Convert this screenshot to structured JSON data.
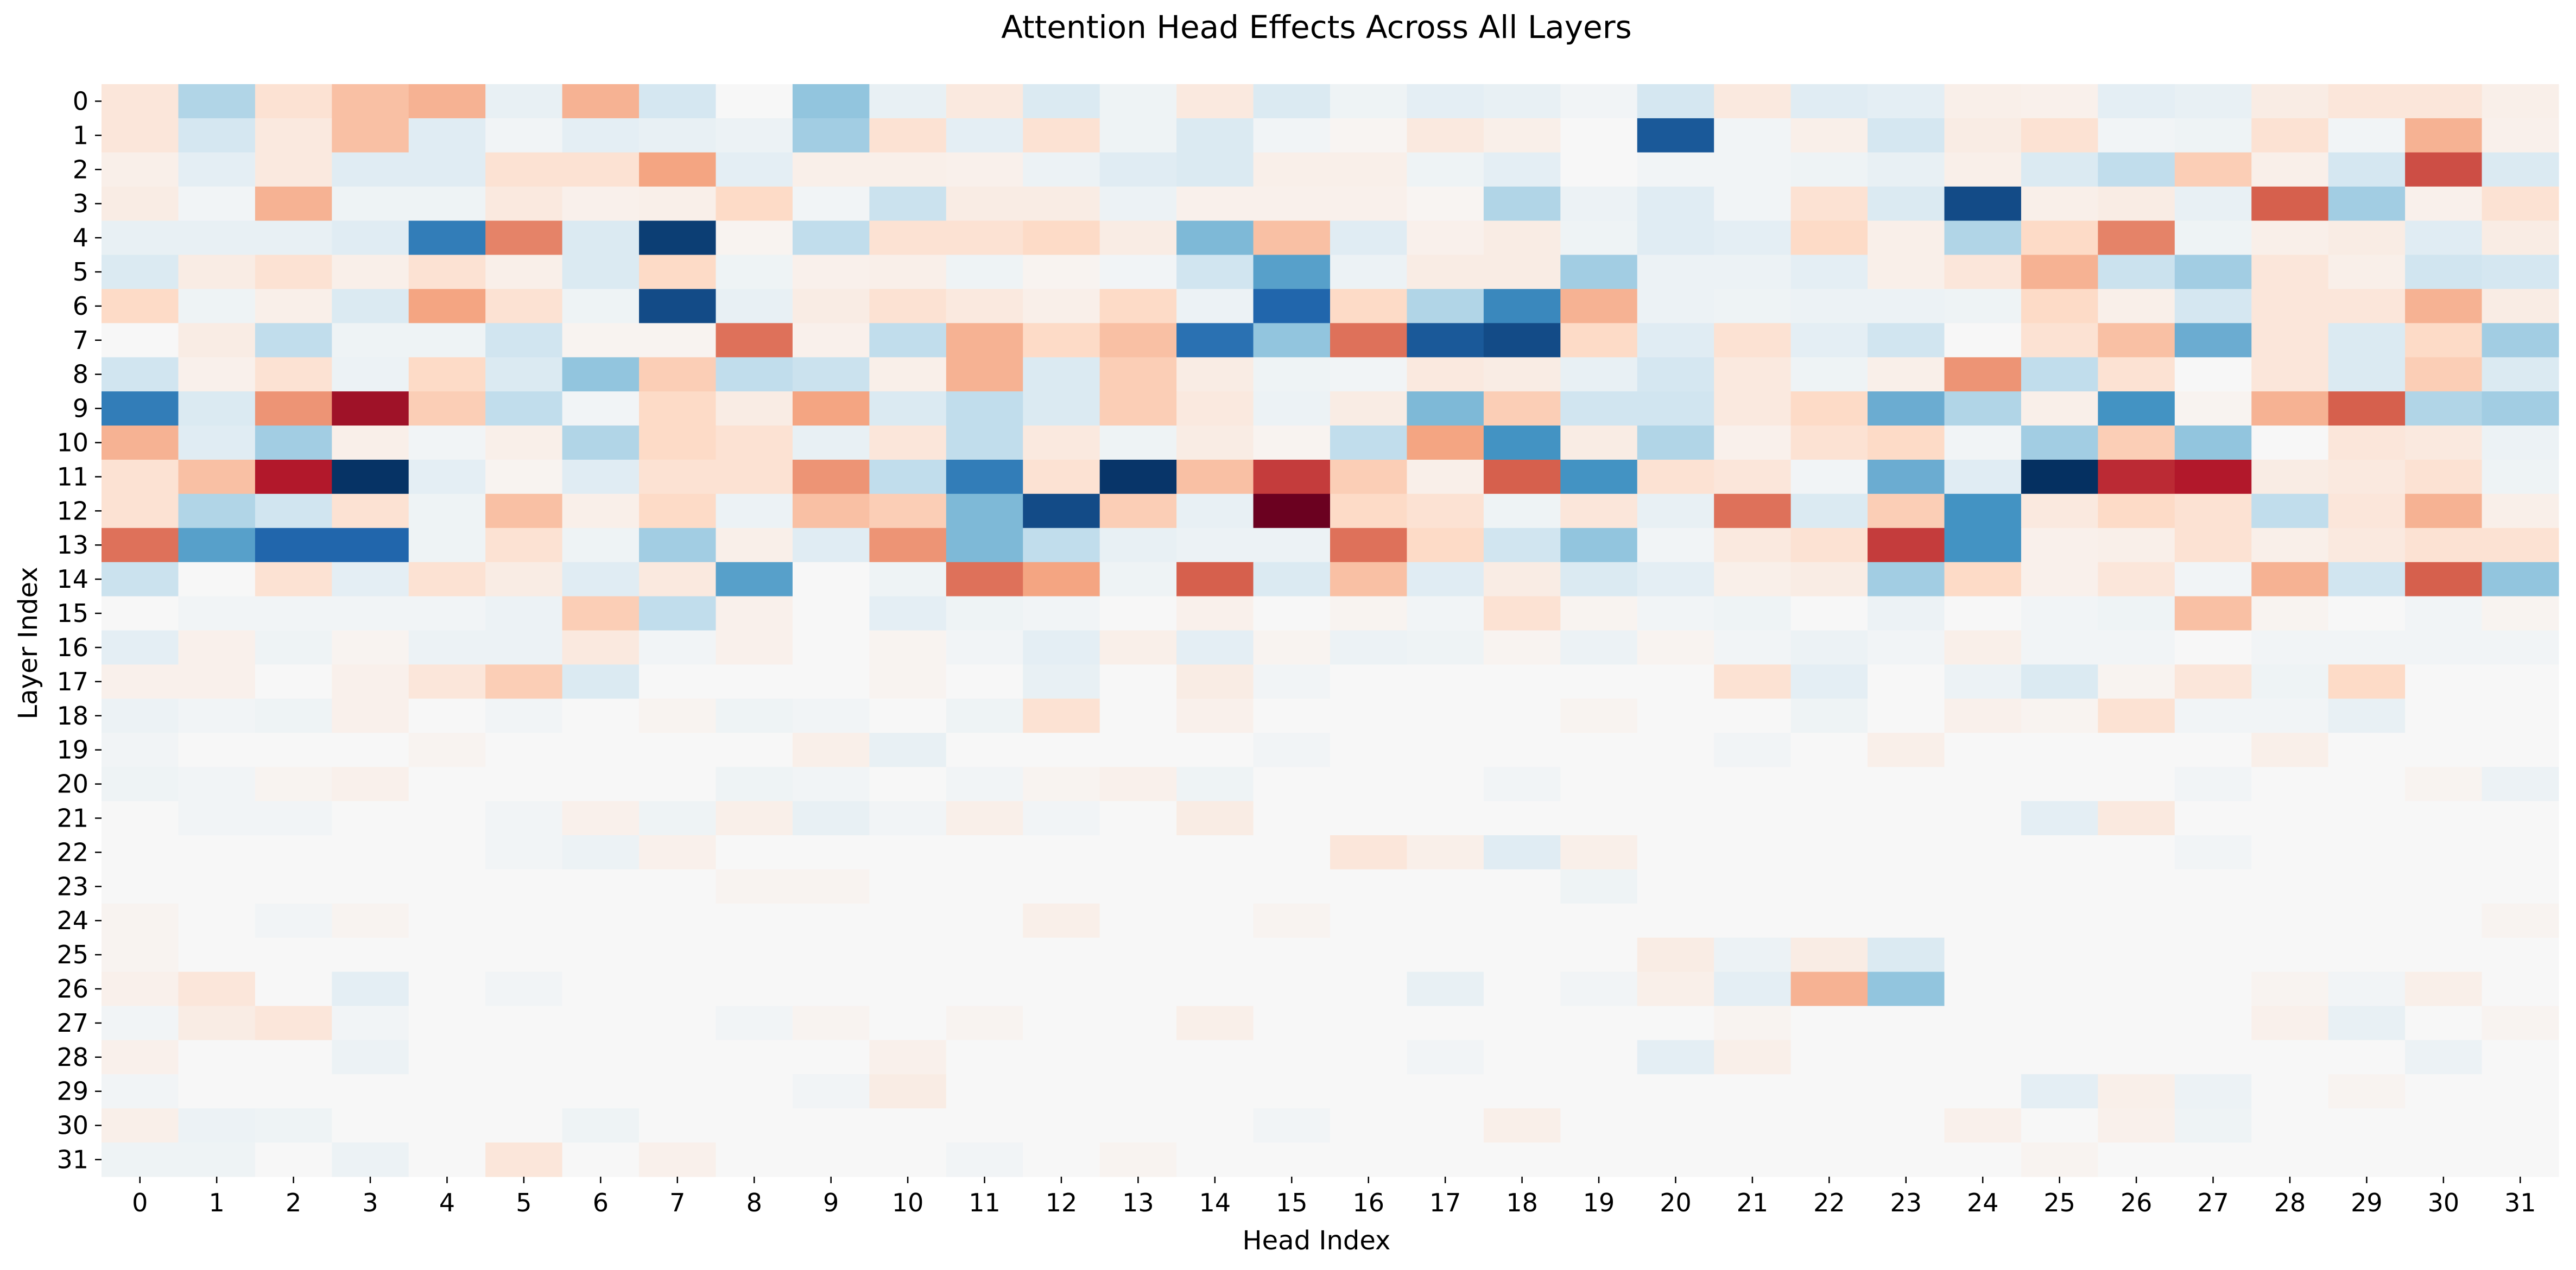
{
  "chart_data": {
    "type": "heatmap",
    "title": "Attention Head Effects Across All Layers",
    "xlabel": "Head Index",
    "ylabel": "Layer Index",
    "x_categories": [
      "0",
      "1",
      "2",
      "3",
      "4",
      "5",
      "6",
      "7",
      "8",
      "9",
      "10",
      "11",
      "12",
      "13",
      "14",
      "15",
      "16",
      "17",
      "18",
      "19",
      "20",
      "21",
      "22",
      "23",
      "24",
      "25",
      "26",
      "27",
      "28",
      "29",
      "30",
      "31"
    ],
    "y_categories": [
      "0",
      "1",
      "2",
      "3",
      "4",
      "5",
      "6",
      "7",
      "8",
      "9",
      "10",
      "11",
      "12",
      "13",
      "14",
      "15",
      "16",
      "17",
      "18",
      "19",
      "20",
      "21",
      "22",
      "23",
      "24",
      "25",
      "26",
      "27",
      "28",
      "29",
      "30",
      "31"
    ],
    "colormap": "RdBu_r",
    "vmin": -1,
    "vmax": 1,
    "colorbar": false,
    "grid": false,
    "values": [
      [
        0.12,
        -0.3,
        0.15,
        0.3,
        0.35,
        -0.08,
        0.35,
        -0.18,
        0.0,
        -0.4,
        -0.08,
        0.1,
        -0.15,
        -0.05,
        0.1,
        -0.15,
        -0.05,
        -0.1,
        -0.08,
        -0.03,
        -0.18,
        0.1,
        -0.12,
        -0.1,
        0.06,
        0.05,
        -0.1,
        -0.08,
        0.08,
        0.12,
        0.12,
        0.06
      ],
      [
        0.12,
        -0.18,
        0.1,
        0.3,
        -0.12,
        -0.03,
        -0.1,
        -0.08,
        -0.06,
        -0.35,
        0.15,
        -0.1,
        0.15,
        -0.05,
        -0.15,
        -0.03,
        0.02,
        0.1,
        0.06,
        0.0,
        -0.85,
        -0.03,
        0.06,
        -0.18,
        0.08,
        0.15,
        -0.03,
        -0.05,
        0.15,
        -0.03,
        0.35,
        0.05
      ],
      [
        0.06,
        -0.1,
        0.1,
        -0.12,
        -0.12,
        0.15,
        0.15,
        0.4,
        -0.1,
        0.06,
        0.06,
        0.05,
        -0.06,
        -0.12,
        -0.15,
        0.06,
        0.06,
        -0.05,
        -0.1,
        0.0,
        -0.03,
        -0.03,
        -0.05,
        -0.08,
        0.06,
        -0.15,
        -0.25,
        0.25,
        0.06,
        -0.18,
        0.65,
        -0.15
      ],
      [
        0.08,
        -0.03,
        0.35,
        -0.05,
        -0.05,
        0.1,
        0.05,
        0.06,
        0.2,
        -0.03,
        -0.22,
        0.08,
        0.08,
        -0.06,
        0.05,
        0.05,
        0.05,
        0.02,
        -0.3,
        -0.06,
        -0.12,
        -0.03,
        0.15,
        -0.15,
        -0.9,
        0.06,
        0.08,
        -0.08,
        0.6,
        -0.35,
        0.05,
        0.15
      ],
      [
        -0.08,
        -0.08,
        -0.08,
        -0.12,
        -0.7,
        0.5,
        -0.15,
        -0.95,
        0.03,
        -0.25,
        0.15,
        0.15,
        0.2,
        0.08,
        -0.45,
        0.3,
        -0.12,
        0.05,
        0.08,
        -0.05,
        -0.12,
        -0.1,
        0.2,
        0.06,
        -0.3,
        0.2,
        0.5,
        -0.05,
        0.06,
        0.08,
        -0.12,
        0.08
      ],
      [
        -0.15,
        0.08,
        0.15,
        0.06,
        0.15,
        0.06,
        -0.15,
        0.2,
        -0.05,
        0.05,
        0.06,
        -0.05,
        0.03,
        -0.03,
        -0.2,
        -0.55,
        -0.06,
        0.08,
        0.08,
        -0.35,
        -0.06,
        -0.06,
        -0.1,
        0.06,
        0.12,
        0.35,
        -0.22,
        -0.35,
        0.12,
        0.06,
        -0.2,
        -0.18
      ],
      [
        0.2,
        -0.05,
        0.06,
        -0.15,
        0.4,
        0.15,
        -0.05,
        -0.9,
        -0.08,
        0.08,
        0.15,
        0.1,
        0.06,
        0.2,
        -0.06,
        -0.8,
        0.2,
        -0.3,
        -0.65,
        0.35,
        -0.06,
        -0.05,
        -0.06,
        -0.06,
        -0.05,
        0.2,
        0.06,
        -0.18,
        0.12,
        0.12,
        0.35,
        0.08
      ],
      [
        0.0,
        0.08,
        -0.25,
        -0.05,
        -0.05,
        -0.2,
        0.03,
        0.03,
        0.55,
        0.05,
        -0.25,
        0.35,
        0.2,
        0.3,
        -0.75,
        -0.4,
        0.55,
        -0.85,
        -0.9,
        0.2,
        -0.12,
        0.15,
        -0.1,
        -0.2,
        0.0,
        0.15,
        0.3,
        -0.5,
        0.12,
        -0.15,
        0.2,
        -0.35
      ],
      [
        -0.2,
        0.05,
        0.15,
        -0.06,
        0.2,
        -0.15,
        -0.4,
        0.25,
        -0.25,
        -0.22,
        0.06,
        0.35,
        -0.15,
        0.25,
        0.08,
        -0.05,
        -0.03,
        0.1,
        0.08,
        -0.08,
        -0.18,
        0.1,
        -0.05,
        0.06,
        0.45,
        -0.25,
        0.15,
        0.0,
        0.12,
        -0.15,
        0.25,
        -0.15
      ],
      [
        -0.7,
        -0.15,
        0.45,
        0.85,
        0.25,
        -0.25,
        -0.03,
        0.2,
        0.08,
        0.4,
        -0.15,
        -0.25,
        -0.15,
        0.25,
        0.1,
        -0.06,
        0.08,
        -0.45,
        0.25,
        -0.2,
        -0.2,
        0.1,
        0.2,
        -0.5,
        -0.3,
        0.06,
        -0.6,
        0.03,
        0.35,
        0.6,
        -0.3,
        -0.35
      ],
      [
        0.35,
        -0.12,
        -0.35,
        0.06,
        -0.03,
        0.06,
        -0.3,
        0.2,
        0.15,
        -0.08,
        0.12,
        -0.25,
        0.1,
        -0.05,
        0.08,
        0.03,
        -0.25,
        0.4,
        -0.6,
        0.08,
        -0.3,
        0.05,
        0.15,
        0.2,
        -0.03,
        -0.35,
        0.25,
        -0.4,
        0.0,
        0.12,
        0.1,
        -0.06
      ],
      [
        0.15,
        0.3,
        0.8,
        -0.99,
        -0.1,
        0.03,
        -0.12,
        0.15,
        0.15,
        0.45,
        -0.25,
        -0.7,
        0.15,
        -0.98,
        0.3,
        0.7,
        0.25,
        0.06,
        0.6,
        -0.6,
        0.15,
        0.12,
        -0.03,
        -0.5,
        -0.12,
        -1.0,
        0.75,
        0.8,
        0.08,
        0.1,
        0.15,
        -0.05
      ],
      [
        0.15,
        -0.3,
        -0.2,
        0.15,
        -0.05,
        0.3,
        0.06,
        0.2,
        -0.06,
        0.3,
        0.25,
        -0.45,
        -0.9,
        0.25,
        -0.08,
        0.99,
        0.2,
        0.15,
        -0.05,
        0.12,
        -0.08,
        0.55,
        -0.15,
        0.25,
        -0.6,
        0.1,
        0.2,
        0.15,
        -0.25,
        0.12,
        0.35,
        0.06
      ],
      [
        0.55,
        -0.55,
        -0.8,
        -0.8,
        -0.05,
        0.15,
        -0.05,
        -0.35,
        0.06,
        -0.12,
        0.45,
        -0.45,
        -0.25,
        -0.08,
        -0.06,
        -0.06,
        0.55,
        0.2,
        -0.2,
        -0.4,
        -0.03,
        0.1,
        0.15,
        0.7,
        -0.6,
        0.05,
        0.06,
        0.15,
        0.06,
        0.1,
        0.15,
        0.15
      ],
      [
        -0.22,
        0.0,
        0.15,
        -0.1,
        0.15,
        0.08,
        -0.12,
        0.1,
        -0.55,
        0.0,
        -0.05,
        0.55,
        0.4,
        -0.05,
        0.6,
        -0.15,
        0.3,
        -0.12,
        0.08,
        -0.15,
        -0.1,
        0.06,
        0.08,
        -0.35,
        0.2,
        0.05,
        0.12,
        -0.03,
        0.35,
        -0.2,
        0.6,
        -0.4
      ],
      [
        0.0,
        -0.03,
        -0.03,
        -0.03,
        -0.03,
        -0.06,
        0.25,
        -0.25,
        0.05,
        0.0,
        -0.1,
        -0.05,
        -0.03,
        0.0,
        0.05,
        0.0,
        0.03,
        -0.03,
        0.15,
        0.03,
        -0.03,
        -0.05,
        0.0,
        -0.06,
        0.0,
        -0.03,
        -0.05,
        0.3,
        0.03,
        0.0,
        -0.03,
        0.03
      ],
      [
        -0.1,
        0.05,
        -0.05,
        0.03,
        -0.06,
        -0.06,
        0.1,
        -0.03,
        0.05,
        0.0,
        0.03,
        -0.03,
        -0.1,
        0.06,
        -0.1,
        0.03,
        -0.06,
        -0.05,
        0.03,
        -0.06,
        0.03,
        -0.03,
        -0.06,
        -0.03,
        0.06,
        -0.03,
        -0.03,
        0.0,
        -0.03,
        -0.03,
        -0.03,
        -0.03
      ],
      [
        0.05,
        0.05,
        0.0,
        0.05,
        0.12,
        0.25,
        -0.15,
        0.0,
        0.0,
        0.0,
        0.03,
        0.0,
        -0.08,
        0.0,
        0.08,
        -0.03,
        0.0,
        0.0,
        0.0,
        0.0,
        0.0,
        0.15,
        -0.1,
        0.0,
        -0.06,
        -0.15,
        0.03,
        0.12,
        -0.05,
        0.2,
        0.0,
        0.0
      ],
      [
        -0.06,
        -0.03,
        -0.05,
        0.05,
        0.0,
        -0.03,
        0.0,
        0.03,
        -0.05,
        -0.03,
        0.0,
        -0.05,
        0.15,
        0.0,
        0.05,
        0.0,
        0.0,
        0.0,
        0.0,
        0.03,
        0.0,
        0.0,
        -0.05,
        0.0,
        0.05,
        0.03,
        0.15,
        -0.03,
        -0.03,
        -0.08,
        0.0,
        0.0
      ],
      [
        -0.03,
        0.0,
        0.0,
        0.0,
        0.03,
        0.0,
        0.0,
        0.0,
        0.0,
        0.06,
        -0.08,
        0.0,
        0.0,
        0.0,
        0.0,
        -0.03,
        0.0,
        0.0,
        0.0,
        0.0,
        0.0,
        -0.03,
        0.0,
        0.06,
        0.0,
        0.0,
        0.0,
        0.0,
        0.06,
        0.0,
        0.0,
        0.0
      ],
      [
        -0.05,
        -0.03,
        0.03,
        0.05,
        0.0,
        0.0,
        0.0,
        0.0,
        -0.05,
        -0.03,
        0.0,
        -0.03,
        0.03,
        0.05,
        -0.05,
        0.0,
        0.0,
        0.0,
        -0.03,
        0.0,
        0.0,
        0.0,
        0.0,
        0.0,
        0.0,
        0.0,
        0.0,
        -0.03,
        0.0,
        0.0,
        0.03,
        -0.06
      ],
      [
        0.0,
        -0.03,
        -0.03,
        0.0,
        0.0,
        -0.03,
        0.05,
        -0.05,
        0.06,
        -0.08,
        -0.03,
        0.06,
        -0.03,
        0.0,
        0.08,
        0.0,
        0.0,
        0.0,
        0.0,
        0.0,
        0.0,
        0.0,
        0.0,
        0.0,
        0.0,
        -0.1,
        0.1,
        0.0,
        0.0,
        0.0,
        0.0,
        0.0
      ],
      [
        0.0,
        0.0,
        0.0,
        0.0,
        0.0,
        -0.03,
        -0.06,
        0.05,
        0.0,
        0.0,
        0.0,
        0.0,
        0.0,
        0.0,
        0.0,
        0.0,
        0.12,
        0.06,
        -0.12,
        0.06,
        0.0,
        0.0,
        0.0,
        0.0,
        0.0,
        0.0,
        0.0,
        -0.03,
        0.0,
        0.0,
        0.0,
        0.0
      ],
      [
        0.0,
        0.0,
        0.0,
        0.0,
        0.0,
        0.0,
        0.0,
        0.0,
        0.03,
        0.03,
        0.0,
        0.0,
        0.0,
        0.0,
        0.0,
        0.0,
        0.0,
        0.0,
        0.0,
        -0.05,
        0.0,
        0.0,
        0.0,
        0.0,
        0.0,
        0.0,
        0.0,
        0.0,
        0.0,
        0.0,
        0.0,
        0.0
      ],
      [
        0.03,
        0.0,
        -0.03,
        0.03,
        0.0,
        0.0,
        0.0,
        0.0,
        0.0,
        0.0,
        0.0,
        0.0,
        0.06,
        0.0,
        0.0,
        0.03,
        0.0,
        0.0,
        0.0,
        0.0,
        0.0,
        0.0,
        0.0,
        0.0,
        0.0,
        0.0,
        0.0,
        0.0,
        0.0,
        0.0,
        0.0,
        0.03
      ],
      [
        0.03,
        0.0,
        0.0,
        0.0,
        0.0,
        0.0,
        0.0,
        0.0,
        0.0,
        0.0,
        0.0,
        0.0,
        0.0,
        0.0,
        0.0,
        0.0,
        0.0,
        0.0,
        0.0,
        0.0,
        0.08,
        -0.06,
        0.08,
        -0.15,
        0.0,
        0.0,
        0.0,
        0.0,
        0.0,
        0.0,
        0.0,
        0.0
      ],
      [
        0.05,
        0.12,
        0.0,
        -0.1,
        0.0,
        -0.03,
        0.0,
        0.0,
        0.0,
        0.0,
        0.0,
        0.0,
        0.0,
        0.0,
        0.0,
        0.0,
        0.0,
        -0.08,
        0.0,
        -0.03,
        0.06,
        -0.1,
        0.35,
        -0.4,
        0.0,
        0.0,
        0.0,
        0.0,
        0.03,
        -0.03,
        0.06,
        0.0
      ],
      [
        -0.03,
        0.08,
        0.12,
        -0.03,
        0.0,
        0.0,
        0.0,
        0.0,
        -0.03,
        0.03,
        0.0,
        0.03,
        0.0,
        0.0,
        0.06,
        0.0,
        0.0,
        0.0,
        0.0,
        0.0,
        0.0,
        0.03,
        0.0,
        0.0,
        0.0,
        0.0,
        0.0,
        0.0,
        0.05,
        -0.08,
        0.0,
        0.03
      ],
      [
        0.05,
        0.0,
        0.0,
        -0.06,
        0.0,
        0.0,
        0.0,
        0.0,
        0.0,
        0.0,
        0.05,
        0.0,
        0.0,
        0.0,
        0.0,
        0.0,
        0.0,
        -0.03,
        0.0,
        0.0,
        -0.1,
        0.06,
        0.0,
        0.0,
        0.0,
        0.0,
        0.0,
        0.0,
        0.0,
        0.0,
        -0.06,
        0.0
      ],
      [
        -0.03,
        0.0,
        0.0,
        0.0,
        0.0,
        0.0,
        0.0,
        0.0,
        0.0,
        -0.03,
        0.08,
        0.0,
        0.0,
        0.0,
        0.0,
        0.0,
        0.0,
        0.0,
        0.0,
        0.0,
        0.0,
        0.0,
        0.0,
        0.0,
        0.0,
        -0.1,
        0.06,
        -0.06,
        0.0,
        0.03,
        0.0,
        0.0
      ],
      [
        0.06,
        -0.06,
        -0.05,
        0.0,
        0.0,
        0.0,
        -0.05,
        0.0,
        0.0,
        0.0,
        0.0,
        0.0,
        0.0,
        0.0,
        0.0,
        -0.03,
        0.0,
        0.0,
        0.06,
        0.0,
        0.0,
        0.0,
        0.0,
        0.0,
        0.05,
        0.0,
        0.05,
        -0.05,
        0.0,
        0.0,
        0.0,
        0.0
      ],
      [
        -0.05,
        -0.05,
        0.0,
        -0.06,
        0.0,
        0.12,
        0.0,
        0.05,
        0.0,
        0.0,
        0.0,
        -0.03,
        0.0,
        0.03,
        0.0,
        0.0,
        0.0,
        0.0,
        0.0,
        0.0,
        0.0,
        0.0,
        0.0,
        0.0,
        0.0,
        0.03,
        0.0,
        0.0,
        0.0,
        0.0,
        0.0,
        0.0
      ]
    ]
  }
}
